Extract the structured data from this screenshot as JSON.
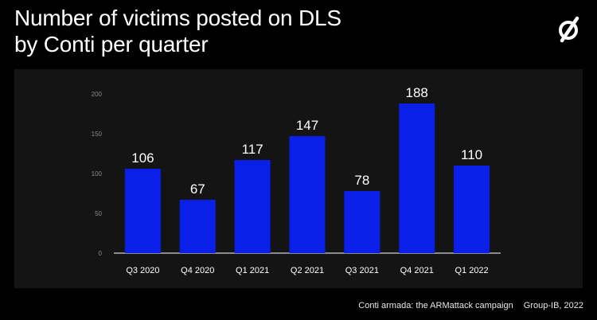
{
  "header": {
    "title_line1": "Number of victims posted on DLS",
    "title_line2": "by Conti per quarter"
  },
  "logo": {
    "icon": "group-ib-logo-icon"
  },
  "footer": {
    "source": "Conti armada: the ARMattack campaign",
    "credit": "Group-IB, 2022"
  },
  "colors": {
    "background": "#000000",
    "panel": "#141414",
    "bar": "#0a1fe8",
    "tick": "#8a8a8a",
    "text": "#ffffff"
  },
  "chart_data": {
    "type": "bar",
    "title": "Number of victims posted on DLS by Conti per quarter",
    "categories": [
      "Q3 2020",
      "Q4 2020",
      "Q1 2021",
      "Q2 2021",
      "Q3 2021",
      "Q4 2021",
      "Q1 2022"
    ],
    "values": [
      106,
      67,
      117,
      147,
      78,
      188,
      110
    ],
    "yticks": [
      0,
      50,
      100,
      150,
      200
    ],
    "ylim": [
      0,
      200
    ],
    "xlabel": "",
    "ylabel": "",
    "grid": false,
    "legend": "none",
    "data_labels": true
  }
}
